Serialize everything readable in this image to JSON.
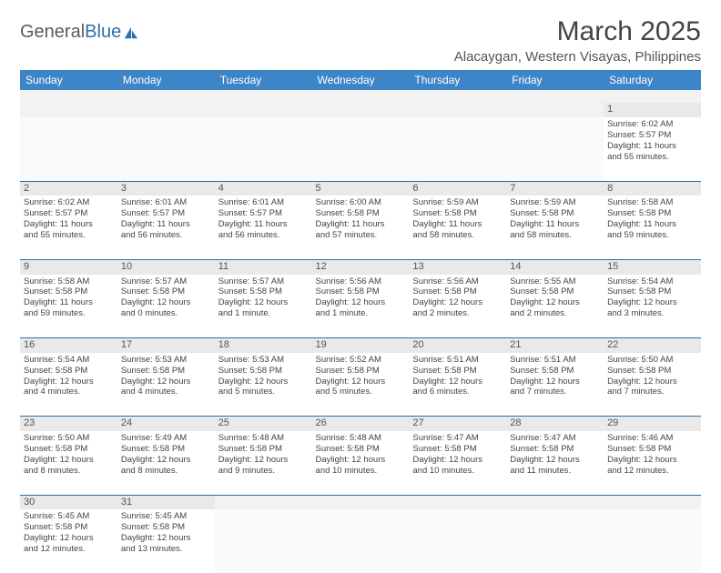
{
  "brand": {
    "part1": "General",
    "part2": "Blue"
  },
  "title": "March 2025",
  "location": "Alacaygan, Western Visayas, Philippines",
  "colors": {
    "header_bg": "#3d85c6",
    "header_text": "#ffffff",
    "daynum_bg": "#e9e9e9",
    "rule": "#2f6fa8",
    "text": "#444444",
    "brand_gray": "#5a5a5a",
    "brand_blue": "#2f6fa8"
  },
  "day_headers": [
    "Sunday",
    "Monday",
    "Tuesday",
    "Wednesday",
    "Thursday",
    "Friday",
    "Saturday"
  ],
  "weeks": [
    {
      "nums": [
        "",
        "",
        "",
        "",
        "",
        "",
        "1"
      ],
      "cells": [
        [],
        [],
        [],
        [],
        [],
        [],
        [
          "Sunrise: 6:02 AM",
          "Sunset: 5:57 PM",
          "Daylight: 11 hours",
          "and 55 minutes."
        ]
      ]
    },
    {
      "nums": [
        "2",
        "3",
        "4",
        "5",
        "6",
        "7",
        "8"
      ],
      "cells": [
        [
          "Sunrise: 6:02 AM",
          "Sunset: 5:57 PM",
          "Daylight: 11 hours",
          "and 55 minutes."
        ],
        [
          "Sunrise: 6:01 AM",
          "Sunset: 5:57 PM",
          "Daylight: 11 hours",
          "and 56 minutes."
        ],
        [
          "Sunrise: 6:01 AM",
          "Sunset: 5:57 PM",
          "Daylight: 11 hours",
          "and 56 minutes."
        ],
        [
          "Sunrise: 6:00 AM",
          "Sunset: 5:58 PM",
          "Daylight: 11 hours",
          "and 57 minutes."
        ],
        [
          "Sunrise: 5:59 AM",
          "Sunset: 5:58 PM",
          "Daylight: 11 hours",
          "and 58 minutes."
        ],
        [
          "Sunrise: 5:59 AM",
          "Sunset: 5:58 PM",
          "Daylight: 11 hours",
          "and 58 minutes."
        ],
        [
          "Sunrise: 5:58 AM",
          "Sunset: 5:58 PM",
          "Daylight: 11 hours",
          "and 59 minutes."
        ]
      ]
    },
    {
      "nums": [
        "9",
        "10",
        "11",
        "12",
        "13",
        "14",
        "15"
      ],
      "cells": [
        [
          "Sunrise: 5:58 AM",
          "Sunset: 5:58 PM",
          "Daylight: 11 hours",
          "and 59 minutes."
        ],
        [
          "Sunrise: 5:57 AM",
          "Sunset: 5:58 PM",
          "Daylight: 12 hours",
          "and 0 minutes."
        ],
        [
          "Sunrise: 5:57 AM",
          "Sunset: 5:58 PM",
          "Daylight: 12 hours",
          "and 1 minute."
        ],
        [
          "Sunrise: 5:56 AM",
          "Sunset: 5:58 PM",
          "Daylight: 12 hours",
          "and 1 minute."
        ],
        [
          "Sunrise: 5:56 AM",
          "Sunset: 5:58 PM",
          "Daylight: 12 hours",
          "and 2 minutes."
        ],
        [
          "Sunrise: 5:55 AM",
          "Sunset: 5:58 PM",
          "Daylight: 12 hours",
          "and 2 minutes."
        ],
        [
          "Sunrise: 5:54 AM",
          "Sunset: 5:58 PM",
          "Daylight: 12 hours",
          "and 3 minutes."
        ]
      ]
    },
    {
      "nums": [
        "16",
        "17",
        "18",
        "19",
        "20",
        "21",
        "22"
      ],
      "cells": [
        [
          "Sunrise: 5:54 AM",
          "Sunset: 5:58 PM",
          "Daylight: 12 hours",
          "and 4 minutes."
        ],
        [
          "Sunrise: 5:53 AM",
          "Sunset: 5:58 PM",
          "Daylight: 12 hours",
          "and 4 minutes."
        ],
        [
          "Sunrise: 5:53 AM",
          "Sunset: 5:58 PM",
          "Daylight: 12 hours",
          "and 5 minutes."
        ],
        [
          "Sunrise: 5:52 AM",
          "Sunset: 5:58 PM",
          "Daylight: 12 hours",
          "and 5 minutes."
        ],
        [
          "Sunrise: 5:51 AM",
          "Sunset: 5:58 PM",
          "Daylight: 12 hours",
          "and 6 minutes."
        ],
        [
          "Sunrise: 5:51 AM",
          "Sunset: 5:58 PM",
          "Daylight: 12 hours",
          "and 7 minutes."
        ],
        [
          "Sunrise: 5:50 AM",
          "Sunset: 5:58 PM",
          "Daylight: 12 hours",
          "and 7 minutes."
        ]
      ]
    },
    {
      "nums": [
        "23",
        "24",
        "25",
        "26",
        "27",
        "28",
        "29"
      ],
      "cells": [
        [
          "Sunrise: 5:50 AM",
          "Sunset: 5:58 PM",
          "Daylight: 12 hours",
          "and 8 minutes."
        ],
        [
          "Sunrise: 5:49 AM",
          "Sunset: 5:58 PM",
          "Daylight: 12 hours",
          "and 8 minutes."
        ],
        [
          "Sunrise: 5:48 AM",
          "Sunset: 5:58 PM",
          "Daylight: 12 hours",
          "and 9 minutes."
        ],
        [
          "Sunrise: 5:48 AM",
          "Sunset: 5:58 PM",
          "Daylight: 12 hours",
          "and 10 minutes."
        ],
        [
          "Sunrise: 5:47 AM",
          "Sunset: 5:58 PM",
          "Daylight: 12 hours",
          "and 10 minutes."
        ],
        [
          "Sunrise: 5:47 AM",
          "Sunset: 5:58 PM",
          "Daylight: 12 hours",
          "and 11 minutes."
        ],
        [
          "Sunrise: 5:46 AM",
          "Sunset: 5:58 PM",
          "Daylight: 12 hours",
          "and 12 minutes."
        ]
      ]
    },
    {
      "nums": [
        "30",
        "31",
        "",
        "",
        "",
        "",
        ""
      ],
      "cells": [
        [
          "Sunrise: 5:45 AM",
          "Sunset: 5:58 PM",
          "Daylight: 12 hours",
          "and 12 minutes."
        ],
        [
          "Sunrise: 5:45 AM",
          "Sunset: 5:58 PM",
          "Daylight: 12 hours",
          "and 13 minutes."
        ],
        [],
        [],
        [],
        [],
        []
      ]
    }
  ]
}
